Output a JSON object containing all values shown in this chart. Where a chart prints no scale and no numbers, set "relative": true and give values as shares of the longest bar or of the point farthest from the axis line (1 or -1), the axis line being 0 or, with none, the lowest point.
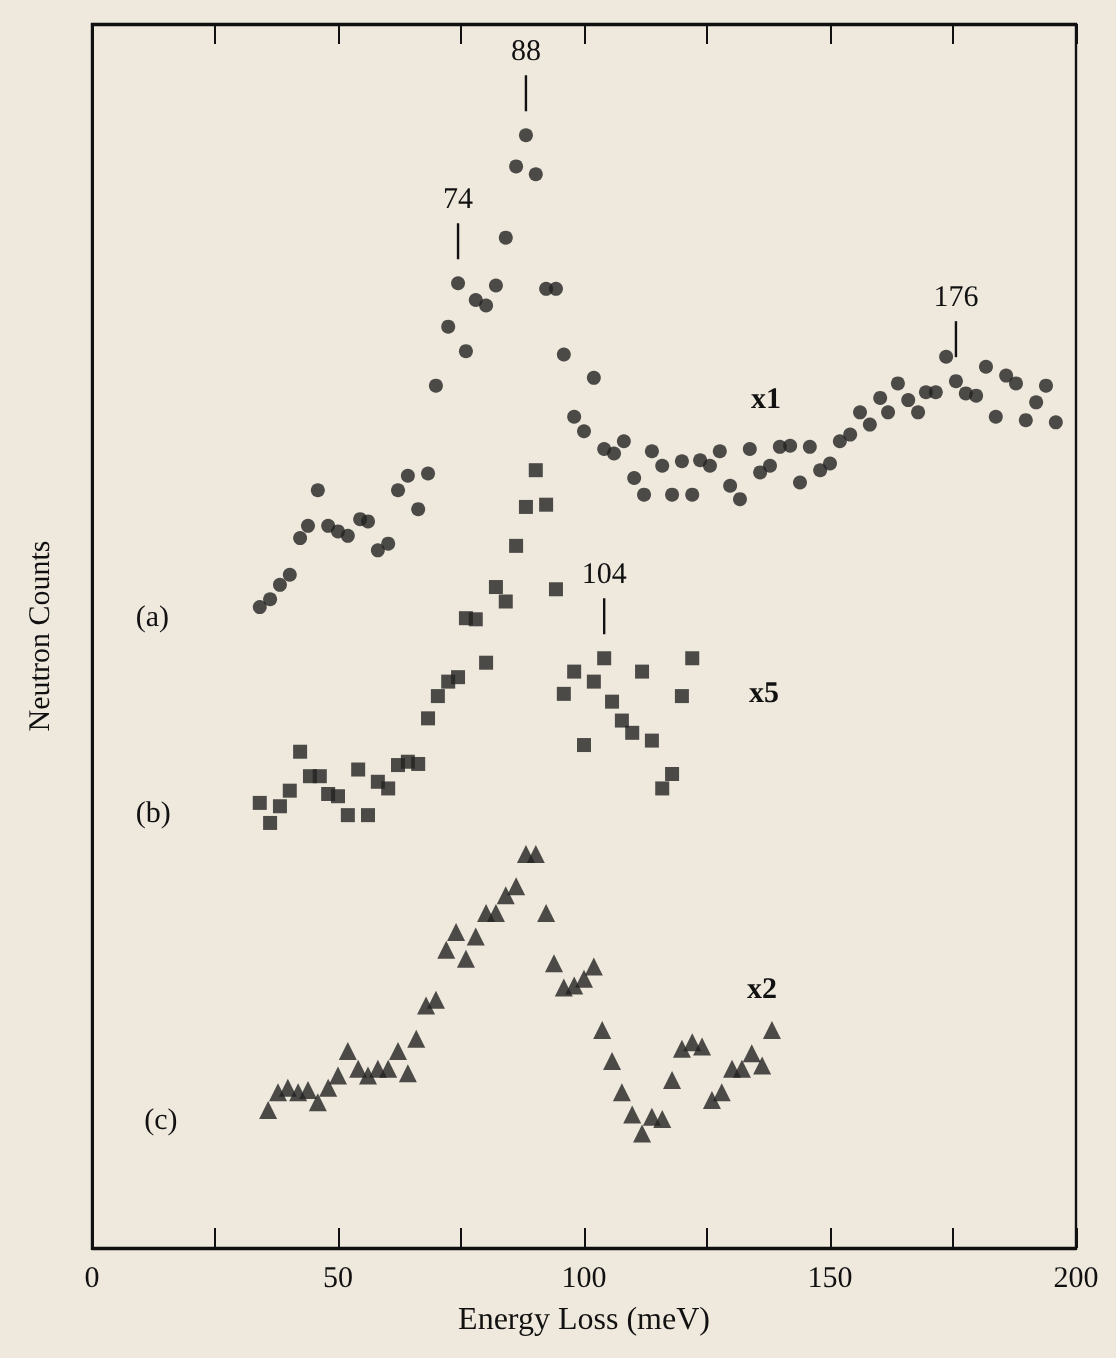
{
  "chart_data": {
    "type": "scatter",
    "relative": true,
    "xlabel": "Energy Loss (meV)",
    "ylabel": "Neutron Counts",
    "xlim": [
      0,
      200
    ],
    "xticks": [
      0,
      {
        "value": 25,
        "label": null
      },
      50,
      {
        "value": 75,
        "label": null
      },
      100,
      {
        "value": 125,
        "label": null
      },
      150,
      {
        "value": 175,
        "label": null
      },
      200
    ],
    "grid": false,
    "legend": false,
    "series": [
      {
        "name": "(a)",
        "color": "#222222",
        "marker": "circle",
        "x": [
          34.1,
          36.2,
          38.2,
          40.2,
          42.3,
          43.9,
          45.9,
          48,
          50,
          52,
          54.5,
          56.1,
          58.1,
          60.2,
          62.2,
          64.2,
          66.3,
          68.3,
          69.9,
          72.4,
          74.4,
          76,
          78,
          80.1,
          82.1,
          84.1,
          86.2,
          88.2,
          90.2,
          92.3,
          94.3,
          95.9,
          98,
          100,
          102,
          104.1,
          106.1,
          108.1,
          110.2,
          112.2,
          113.8,
          115.9,
          117.9,
          119.9,
          122,
          123.6,
          125.6,
          127.6,
          129.7,
          131.7,
          133.7,
          135.8,
          137.8,
          139.8,
          141.9,
          143.9,
          145.9,
          148,
          150,
          152,
          154.1,
          156.1,
          158.1,
          160.2,
          161.8,
          163.8,
          165.9,
          167.9,
          169.5,
          171.5,
          173.6,
          175.6,
          177.6,
          179.7,
          181.7,
          183.7,
          185.8,
          187.8,
          189.8,
          191.9,
          193.9,
          195.9
        ],
        "values": [
          0.576,
          0.583,
          0.596,
          0.605,
          0.638,
          0.649,
          0.681,
          0.649,
          0.644,
          0.64,
          0.655,
          0.653,
          0.627,
          0.633,
          0.681,
          0.694,
          0.664,
          0.696,
          0.775,
          0.828,
          0.867,
          0.806,
          0.852,
          0.847,
          0.865,
          0.908,
          0.972,
          1.0,
          0.965,
          0.862,
          0.862,
          0.803,
          0.747,
          0.734,
          0.782,
          0.718,
          0.714,
          0.725,
          0.692,
          0.677,
          0.716,
          0.703,
          0.677,
          0.707,
          0.677,
          0.708,
          0.703,
          0.716,
          0.685,
          0.673,
          0.718,
          0.697,
          0.703,
          0.72,
          0.721,
          0.688,
          0.72,
          0.699,
          0.705,
          0.725,
          0.731,
          0.751,
          0.74,
          0.764,
          0.751,
          0.777,
          0.762,
          0.751,
          0.769,
          0.769,
          0.801,
          0.779,
          0.768,
          0.766,
          0.792,
          0.747,
          0.784,
          0.777,
          0.744,
          0.76,
          0.775,
          0.742
        ]
      },
      {
        "name": "(b)",
        "color": "#222222",
        "marker": "square",
        "x": [
          34.1,
          36.2,
          38.2,
          40.2,
          42.3,
          44.3,
          46.3,
          48,
          50,
          52,
          54.1,
          56.1,
          58.1,
          60.2,
          62.2,
          64.2,
          66.3,
          68.3,
          70.3,
          72.4,
          74.4,
          76,
          78,
          80.1,
          82.1,
          84.1,
          86.2,
          88.2,
          90.2,
          92.3,
          94.3,
          95.9,
          98,
          100,
          102,
          104.1,
          105.7,
          107.7,
          109.8,
          111.8,
          113.8,
          115.9,
          117.9,
          119.9,
          122
        ],
        "values": [
          0.4,
          0.382,
          0.397,
          0.411,
          0.446,
          0.424,
          0.424,
          0.408,
          0.406,
          0.389,
          0.43,
          0.389,
          0.419,
          0.413,
          0.434,
          0.437,
          0.435,
          0.476,
          0.496,
          0.509,
          0.513,
          0.566,
          0.565,
          0.526,
          0.594,
          0.581,
          0.631,
          0.666,
          0.699,
          0.668,
          0.592,
          0.498,
          0.518,
          0.452,
          0.509,
          0.53,
          0.491,
          0.474,
          0.463,
          0.518,
          0.456,
          0.413,
          0.426,
          0.496,
          0.53
        ]
      },
      {
        "name": "(c)",
        "color": "#222222",
        "marker": "triangle",
        "x": [
          35.8,
          37.8,
          39.8,
          41.9,
          43.9,
          45.9,
          48,
          50,
          52,
          54.1,
          56.1,
          58.1,
          60.2,
          62.2,
          64.2,
          65.9,
          67.9,
          69.9,
          72,
          74,
          76,
          78,
          80.1,
          82.1,
          84.1,
          86.2,
          88.2,
          90.2,
          92.3,
          93.9,
          95.9,
          98,
          100,
          102,
          103.7,
          105.7,
          107.7,
          109.8,
          111.8,
          113.8,
          115.9,
          117.9,
          119.9,
          122,
          124,
          126,
          128,
          130.1,
          132.1,
          134.1,
          136.2,
          138.2
        ],
        "values": [
          0.124,
          0.14,
          0.144,
          0.14,
          0.142,
          0.131,
          0.144,
          0.155,
          0.177,
          0.161,
          0.155,
          0.161,
          0.161,
          0.177,
          0.157,
          0.188,
          0.218,
          0.223,
          0.268,
          0.284,
          0.26,
          0.28,
          0.301,
          0.301,
          0.317,
          0.325,
          0.354,
          0.354,
          0.301,
          0.256,
          0.234,
          0.236,
          0.242,
          0.253,
          0.196,
          0.168,
          0.14,
          0.12,
          0.103,
          0.118,
          0.116,
          0.151,
          0.179,
          0.185,
          0.181,
          0.133,
          0.14,
          0.161,
          0.161,
          0.175,
          0.164,
          0.196
        ]
      }
    ],
    "annotations": [
      {
        "text": "74",
        "x": 74.4,
        "y": 0.867
      },
      {
        "text": "88",
        "x": 88.2,
        "y": 1.0
      },
      {
        "text": "104",
        "x": 104.1,
        "y": 0.53
      },
      {
        "text": "176",
        "x": 175.6,
        "y": 0.779
      },
      "x1",
      "x5",
      "x2"
    ]
  }
}
